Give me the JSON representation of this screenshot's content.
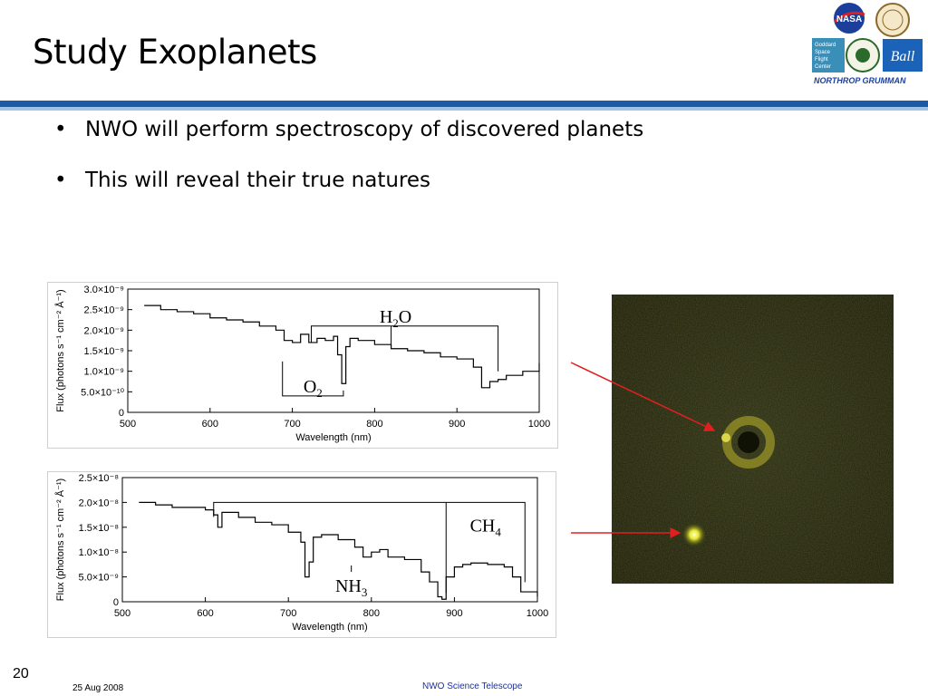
{
  "slide": {
    "title": "Study Exoplanets",
    "bullets": [
      "NWO will perform spectroscopy of discovered planets",
      "This will reveal their true natures"
    ],
    "footer": {
      "page_number": "20",
      "date": "25 Aug 2008",
      "center": "NWO Science Telescope"
    }
  },
  "logos": {
    "nasa": "NASA",
    "goddard_lines": [
      "Goddard",
      "Space",
      "Flight",
      "Center"
    ],
    "ball": "Ball",
    "northrop": "NORTHROP GRUMMAN"
  },
  "colors": {
    "accent_blue": "#1a5aa6",
    "light_blue": "#9ec3e6",
    "arrow_red": "#e02020",
    "footer_blue": "#1a2fa0"
  },
  "chart_data": [
    {
      "type": "line",
      "x": [
        520,
        540,
        560,
        580,
        600,
        620,
        640,
        660,
        680,
        690,
        700,
        710,
        720,
        730,
        740,
        750,
        755,
        760,
        765,
        770,
        780,
        800,
        820,
        840,
        860,
        880,
        900,
        920,
        930,
        940,
        950,
        960,
        980,
        1000
      ],
      "y": [
        2.6e-09,
        2.5e-09,
        2.45e-09,
        2.4e-09,
        2.3e-09,
        2.25e-09,
        2.2e-09,
        2.1e-09,
        2e-09,
        1.75e-09,
        1.7e-09,
        1.9e-09,
        1.7e-09,
        1.8e-09,
        1.75e-09,
        1.85e-09,
        1.4e-09,
        7e-10,
        1.6e-09,
        1.8e-09,
        1.75e-09,
        1.65e-09,
        1.55e-09,
        1.5e-09,
        1.45e-09,
        1.35e-09,
        1.3e-09,
        1.1e-09,
        6e-10,
        7.5e-10,
        8e-10,
        9e-10,
        1e-09,
        1.2e-09
      ],
      "xlabel": "Wavelength (nm)",
      "ylabel": "Flux (photons s⁻¹ cm⁻² Å⁻¹)",
      "xlim": [
        500,
        1000
      ],
      "ylim": [
        0,
        3e-09
      ],
      "xticks": [
        "500",
        "600",
        "700",
        "800",
        "900",
        "1000"
      ],
      "yticks": [
        {
          "value": 0,
          "label": "0"
        },
        {
          "value": 5e-10,
          "label": "5.0×10⁻¹⁰"
        },
        {
          "value": 1e-09,
          "label": "1.0×10⁻⁹"
        },
        {
          "value": 1.5e-09,
          "label": "1.5×10⁻⁹"
        },
        {
          "value": 2e-09,
          "label": "2.0×10⁻⁹"
        },
        {
          "value": 2.5e-09,
          "label": "2.5×10⁻⁹"
        },
        {
          "value": 3e-09,
          "label": "3.0×10⁻⁹"
        }
      ],
      "annotations": [
        {
          "base": "H",
          "sub": "2",
          "tail": "O",
          "x_from": 723,
          "x_to": 950,
          "x_mid": 820,
          "y": 2.1e-09,
          "label_side": "above"
        },
        {
          "base": "O",
          "sub": "2",
          "tail": "",
          "x_from": 688,
          "x_to": 762,
          "y": 4e-10,
          "label_side": "below"
        }
      ]
    },
    {
      "type": "line",
      "x": [
        520,
        540,
        560,
        580,
        600,
        610,
        615,
        620,
        640,
        660,
        680,
        700,
        715,
        720,
        725,
        730,
        740,
        760,
        780,
        790,
        800,
        810,
        820,
        840,
        860,
        870,
        880,
        885,
        890,
        900,
        910,
        920,
        940,
        960,
        970,
        980,
        1000
      ],
      "y": [
        2e-08,
        1.95e-08,
        1.9e-08,
        1.9e-08,
        1.85e-08,
        1.75e-08,
        1.5e-08,
        1.8e-08,
        1.7e-08,
        1.6e-08,
        1.55e-08,
        1.4e-08,
        1.2e-08,
        5e-09,
        8e-09,
        1.3e-08,
        1.35e-08,
        1.25e-08,
        1.1e-08,
        9e-09,
        1e-08,
        1.05e-08,
        9e-09,
        8.5e-09,
        6e-09,
        4e-09,
        1e-09,
        5e-10,
        5e-09,
        7e-09,
        7.5e-09,
        7.8e-09,
        7.5e-09,
        7e-09,
        5e-09,
        2e-09,
        1e-09
      ],
      "xlabel": "Wavelength (nm)",
      "ylabel": "Flux (photons s⁻¹ cm⁻² Å⁻¹)",
      "xlim": [
        500,
        1000
      ],
      "ylim": [
        0,
        2.5e-08
      ],
      "xticks": [
        "500",
        "600",
        "700",
        "800",
        "900",
        "1000"
      ],
      "yticks": [
        {
          "value": 0,
          "label": "0"
        },
        {
          "value": 5e-09,
          "label": "5.0×10⁻⁹"
        },
        {
          "value": 1e-08,
          "label": "1.0×10⁻⁸"
        },
        {
          "value": 1.5e-08,
          "label": "1.5×10⁻⁸"
        },
        {
          "value": 2e-08,
          "label": "2.0×10⁻⁸"
        },
        {
          "value": 2.5e-08,
          "label": "2.5×10⁻⁸"
        }
      ],
      "annotations": [
        {
          "base": "CH",
          "sub": "4",
          "tail": "",
          "x_from": 610,
          "x_to": 985,
          "x_mid": 890,
          "y": 2e-08,
          "label_side": "right-inside"
        },
        {
          "base": "NH",
          "sub": "3",
          "tail": "",
          "x_from": 730,
          "x_to": 730,
          "y": 1.9e-08,
          "label_side": "below"
        }
      ]
    }
  ]
}
